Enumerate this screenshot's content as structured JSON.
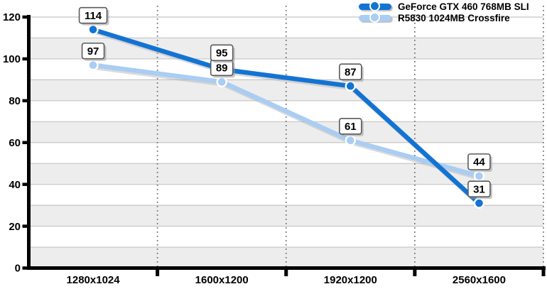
{
  "chart_data": {
    "type": "line",
    "title": "",
    "xlabel": "",
    "ylabel": "",
    "categories": [
      "1280x1024",
      "1600x1200",
      "1920x1200",
      "2560x1600"
    ],
    "series": [
      {
        "name": "GeForce GTX 460 768MB SLI",
        "color": "#1373d3",
        "marker": "circle",
        "values": [
          114,
          95,
          87,
          31
        ]
      },
      {
        "name": "R5830 1024MB Crossfire",
        "color": "#a9cdf3",
        "marker": "circle",
        "values": [
          97,
          89,
          61,
          44
        ]
      }
    ],
    "ylim": [
      0,
      120
    ],
    "yticks": [
      0,
      20,
      40,
      60,
      80,
      100,
      120
    ],
    "gridline_step": 10,
    "grid": true,
    "banded_background": true,
    "data_labels": true,
    "legend_position": "top-right"
  },
  "colors": {
    "background": "#ffffff",
    "band": "#ededed",
    "gridline": "#c4c4c4",
    "dotted_separator": "#6e6e6e",
    "axis": "#000000",
    "label_box_bg": "#ffffff",
    "label_box_border": "#5a5a5a",
    "label_box_shadow": "#9c9c9c",
    "series_dark_blue": "#1373d3",
    "series_light_blue": "#a9cdf3"
  }
}
